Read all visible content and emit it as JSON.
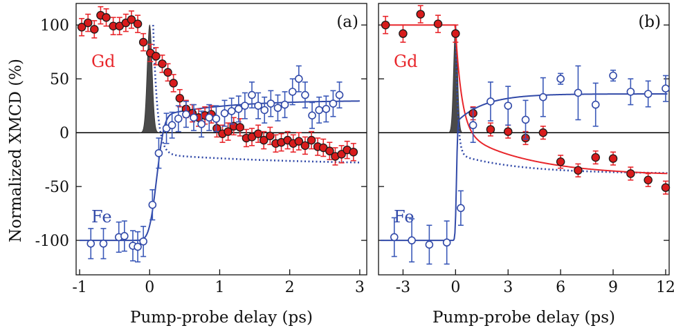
{
  "figure": {
    "ylabel": "Normalized XMCD (%)"
  },
  "colors": {
    "gd": "#e8262b",
    "gd_fill": "#d81c1c",
    "fe": "#3149a8",
    "pulse": "#4a4a4a",
    "errorbar_gd": "#e8262b",
    "errorbar_fe": "#3a58b8"
  },
  "chart_data": [
    {
      "type": "scatter",
      "panel_label": "(a)",
      "xlabel": "Pump-probe delay (ps)",
      "xlim": [
        -1.05,
        3.1
      ],
      "ylim": [
        -132,
        120
      ],
      "xticks": [
        -1,
        0,
        1,
        2,
        3
      ],
      "xtick_labels": [
        "-1",
        "0",
        "1",
        "2",
        "3"
      ],
      "yticks": [
        -100,
        -50,
        0,
        50,
        100
      ],
      "ytick_labels": [
        "-100",
        "-50",
        "0",
        "50",
        "100"
      ],
      "series": [
        {
          "name": "Gd",
          "marker": "filled-circle",
          "x": [
            -0.97,
            -0.88,
            -0.79,
            -0.7,
            -0.62,
            -0.52,
            -0.43,
            -0.34,
            -0.26,
            -0.17,
            -0.09,
            0.01,
            0.09,
            0.18,
            0.26,
            0.34,
            0.43,
            0.52,
            0.61,
            0.7,
            0.79,
            0.88,
            0.96,
            1.04,
            1.12,
            1.2,
            1.29,
            1.38,
            1.46,
            1.55,
            1.63,
            1.72,
            1.8,
            1.88,
            1.97,
            2.05,
            2.13,
            2.22,
            2.31,
            2.4,
            2.48,
            2.57,
            2.65,
            2.74,
            2.82,
            2.91
          ],
          "y": [
            98,
            102,
            96,
            109,
            107,
            99,
            99,
            102,
            105,
            101,
            84,
            74,
            71,
            64,
            56,
            46,
            32,
            22,
            18,
            14,
            16,
            17,
            4,
            -1,
            1,
            6,
            5,
            -5,
            -4,
            -1,
            -7,
            -3,
            -10,
            -9,
            -7,
            -10,
            -8,
            -12,
            -7,
            -13,
            -14,
            -17,
            -22,
            -20,
            -16,
            -18
          ],
          "err": [
            8,
            8,
            8,
            8,
            8,
            8,
            8,
            8,
            8,
            8,
            8,
            8,
            8,
            8,
            8,
            8,
            8,
            8,
            8,
            8,
            8,
            8,
            8,
            8,
            8,
            8,
            8,
            8,
            8,
            8,
            8,
            8,
            8,
            8,
            8,
            8,
            8,
            8,
            8,
            8,
            8,
            8,
            8,
            8,
            8,
            8
          ]
        },
        {
          "name": "Fe",
          "marker": "open-circle",
          "x": [
            -0.84,
            -0.66,
            -0.44,
            -0.36,
            -0.24,
            -0.17,
            -0.09,
            0.04,
            0.13,
            0.24,
            0.32,
            0.41,
            0.52,
            0.63,
            0.74,
            0.85,
            0.95,
            1.07,
            1.17,
            1.27,
            1.36,
            1.46,
            1.55,
            1.64,
            1.73,
            1.83,
            1.93,
            2.04,
            2.13,
            2.22,
            2.32,
            2.42,
            2.52,
            2.62,
            2.71
          ],
          "y": [
            -103,
            -103,
            -97,
            -96,
            -105,
            -106,
            -101,
            -67,
            -19,
            4,
            7,
            13,
            17,
            14,
            8,
            14,
            13,
            18,
            20,
            22,
            25,
            35,
            25,
            21,
            27,
            23,
            26,
            38,
            50,
            35,
            16,
            21,
            22,
            27,
            35
          ],
          "err": [
            14,
            14,
            14,
            14,
            14,
            14,
            14,
            14,
            14,
            14,
            12,
            12,
            12,
            12,
            12,
            12,
            12,
            12,
            12,
            12,
            12,
            12,
            12,
            12,
            12,
            12,
            12,
            12,
            12,
            12,
            12,
            12,
            12,
            12,
            12
          ]
        }
      ],
      "fit_curves": [
        "Gd (red solid)",
        "Fe (blue solid)",
        "dotted blue",
        "grey pump pulse"
      ]
    },
    {
      "type": "scatter",
      "panel_label": "(b)",
      "xlabel": "Pump-probe delay (ps)",
      "xlim": [
        -4.4,
        12.2
      ],
      "ylim": [
        -132,
        120
      ],
      "xticks": [
        -3,
        0,
        3,
        6,
        9,
        12
      ],
      "xtick_labels": [
        "-3",
        "0",
        "3",
        "6",
        "9",
        "12"
      ],
      "yticks": [
        -100,
        -50,
        0,
        50,
        100
      ],
      "series": [
        {
          "name": "Gd",
          "marker": "filled-circle",
          "x": [
            -4.0,
            -3.0,
            -2.0,
            -1.0,
            0.0,
            1.0,
            2.0,
            3.0,
            4.0,
            5.0,
            6.0,
            7.0,
            8.0,
            9.0,
            10.0,
            11.0,
            12.0
          ],
          "y": [
            100,
            92,
            110,
            101,
            92,
            18,
            3,
            1,
            -5,
            0,
            -27,
            -35,
            -23,
            -24,
            -38,
            -44,
            -51
          ],
          "err": [
            8,
            8,
            8,
            8,
            8,
            6,
            6,
            6,
            6,
            6,
            6,
            6,
            6,
            6,
            6,
            6,
            6
          ]
        },
        {
          "name": "Fe",
          "marker": "open-circle",
          "x": [
            -3.5,
            -2.5,
            -1.5,
            -0.5,
            0.3,
            1.0,
            2.0,
            3.0,
            4.0,
            5.0,
            6.0,
            7.0,
            8.0,
            9.0,
            10.0,
            11.0,
            12.0
          ],
          "y": [
            -97,
            -100,
            -104,
            -102,
            -70,
            7,
            29,
            25,
            12,
            33,
            50,
            37,
            26,
            53,
            38,
            36,
            41
          ],
          "err": [
            18,
            20,
            18,
            20,
            16,
            16,
            18,
            18,
            18,
            18,
            5,
            25,
            20,
            5,
            12,
            12,
            12
          ]
        }
      ],
      "fit_curves": [
        "Gd (red solid)",
        "Fe (blue solid)",
        "dotted blue",
        "grey pump pulse"
      ]
    }
  ]
}
